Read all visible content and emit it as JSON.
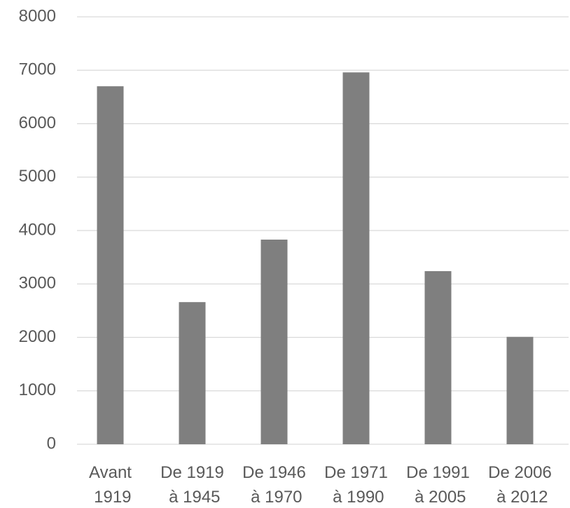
{
  "chart_data": {
    "type": "bar",
    "categories": [
      "Avant 1919",
      "De 1919 à 1945",
      "De 1946 à 1970",
      "De 1971 à 1990",
      "De 1991 à 2005",
      "De 2006 à 2012"
    ],
    "values": [
      6700,
      2660,
      3830,
      6960,
      3240,
      2010
    ],
    "color": "#7f7f7f",
    "ylim": [
      0,
      8000
    ],
    "yticks": [
      0,
      1000,
      2000,
      3000,
      4000,
      5000,
      6000,
      7000,
      8000
    ],
    "grid": true
  }
}
